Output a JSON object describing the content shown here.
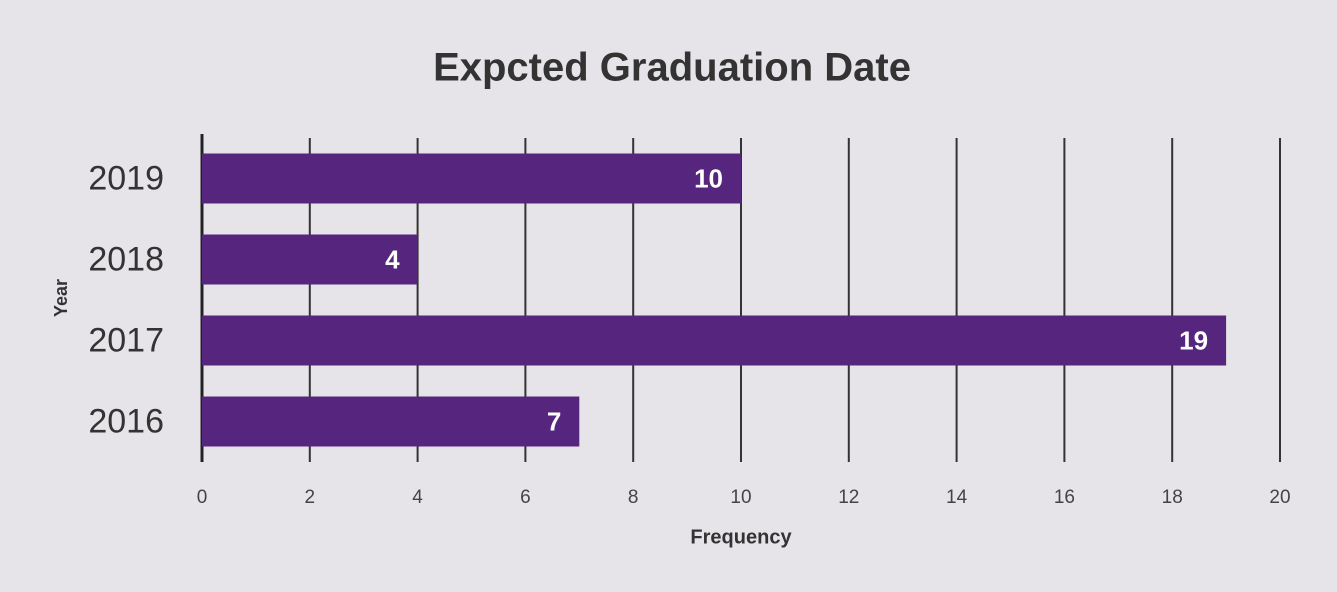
{
  "chart_data": {
    "type": "hbar",
    "title": "Expcted Graduation Date",
    "x_label": "Frequency",
    "y_label": "Year",
    "categories": [
      "2016",
      "2017",
      "2018",
      "2019"
    ],
    "values": [
      7,
      19,
      4,
      10
    ],
    "color": "#56267f",
    "xlim": [
      0,
      20
    ],
    "xticks": [
      0,
      2,
      4,
      6,
      8,
      10,
      12,
      14,
      16,
      18,
      20
    ],
    "grid": true,
    "data_labels": true
  }
}
